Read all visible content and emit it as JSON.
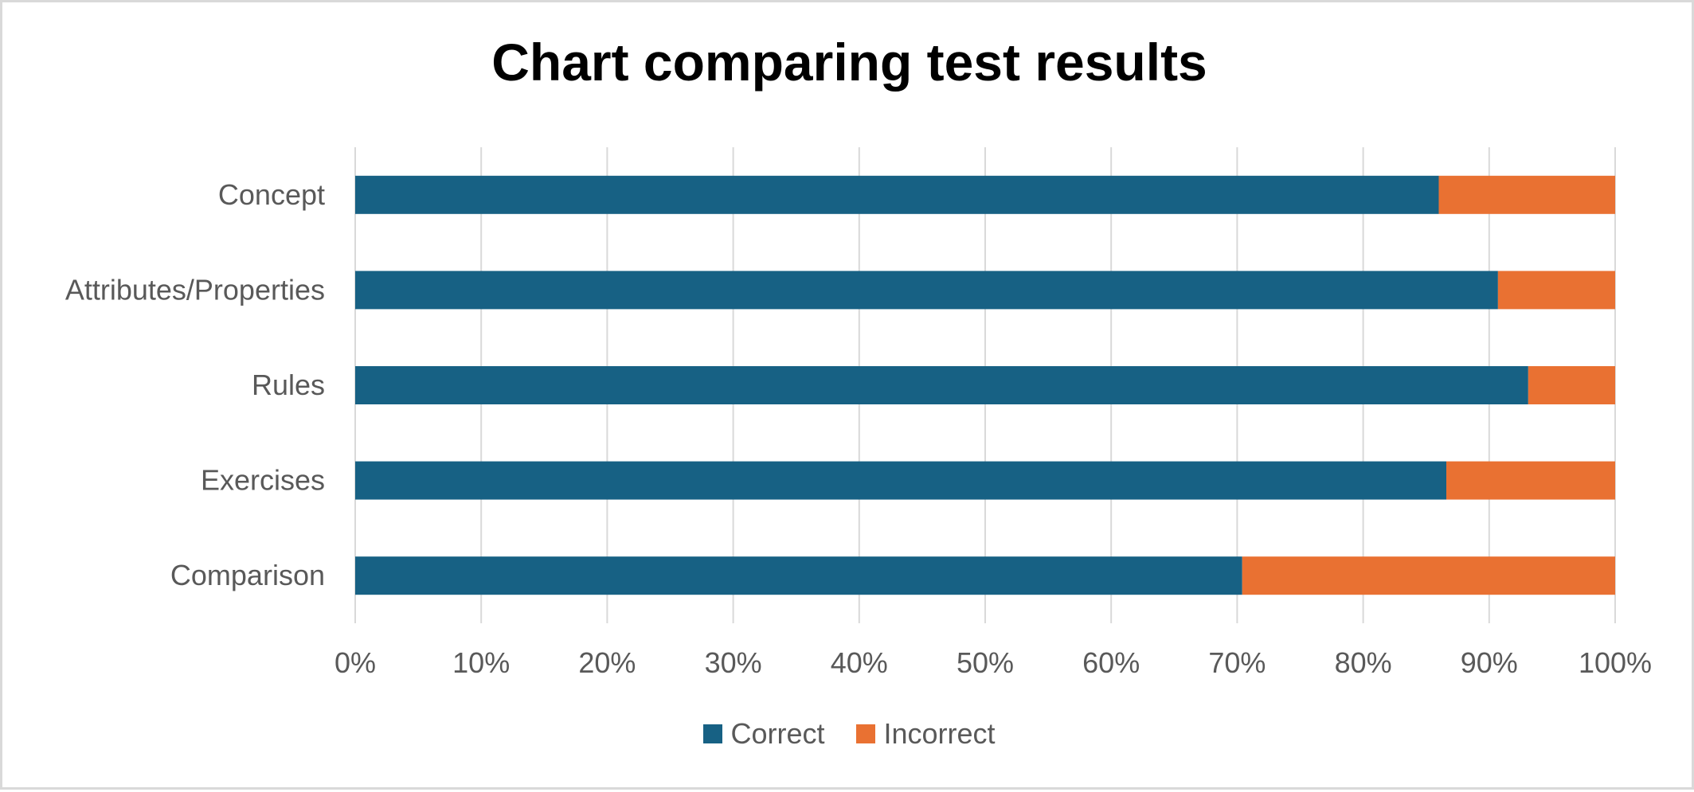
{
  "chart_data": {
    "type": "bar",
    "orientation": "horizontal",
    "stacked": "100%",
    "title": "Chart comparing test results",
    "categories": [
      "Concept",
      "Attributes/Properties",
      "Rules",
      "Exercises",
      "Comparison"
    ],
    "series": [
      {
        "name": "Correct",
        "color": "#176184",
        "values": [
          86,
          90.7,
          93.1,
          86.6,
          70.4
        ]
      },
      {
        "name": "Incorrect",
        "color": "#E97132",
        "values": [
          14,
          9.3,
          6.9,
          13.4,
          29.6
        ]
      }
    ],
    "xlim": [
      0,
      100
    ],
    "x_ticks": [
      "0%",
      "10%",
      "20%",
      "30%",
      "40%",
      "50%",
      "60%",
      "70%",
      "80%",
      "90%",
      "100%"
    ],
    "grid": true,
    "legend_position": "bottom"
  }
}
